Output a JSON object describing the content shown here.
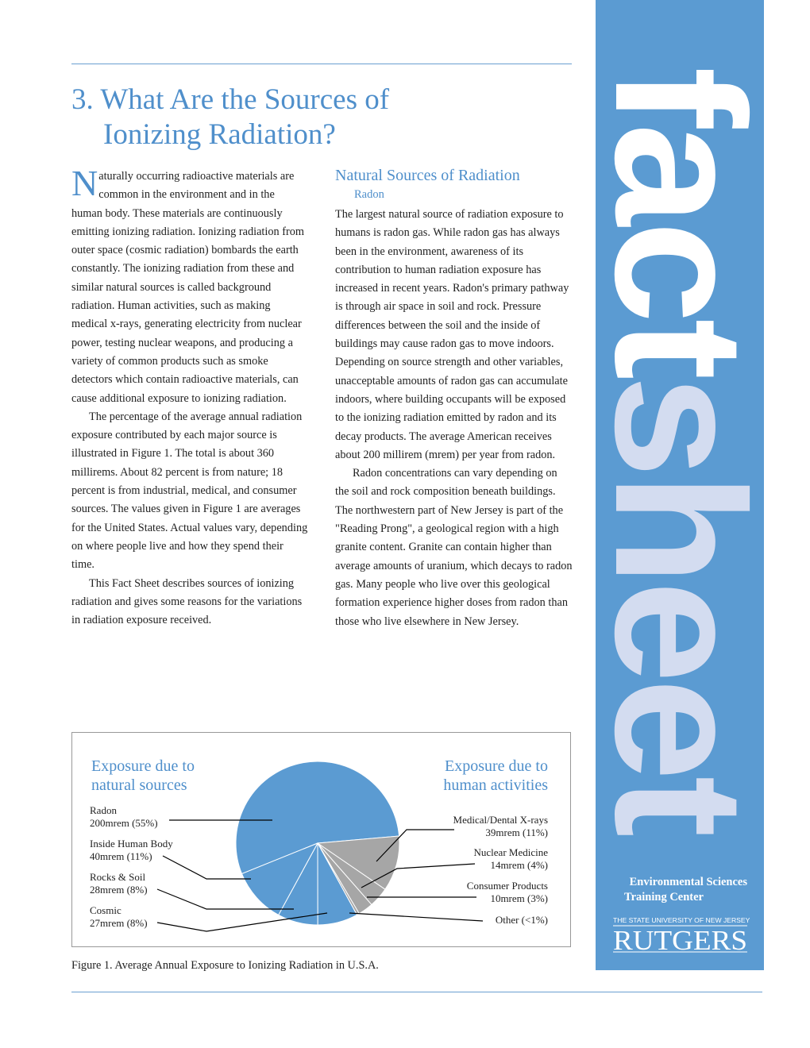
{
  "header": {
    "title": "3. What Are the Sources of Ionizing Radiation?"
  },
  "left_column": {
    "drop_cap": "N",
    "paragraphs": [
      "aturally occurring radioactive materials are common in the environment and in the human body. These materials are continuously emitting ionizing radiation. Ionizing radiation from outer space (cosmic radiation) bombards the earth constantly. The ionizing radiation from these and similar natural sources is called background radiation. Human activities, such as making medical x-rays, generating electricity from nuclear power, testing nuclear weapons, and producing a variety of common products such as smoke detectors which contain radioactive materials, can cause additional exposure to ionizing radiation.",
      "The percentage of the average annual radiation exposure contributed by each major source is illustrated in Figure 1. The total is about 360 millirems. About 82 percent is from nature; 18 percent is from industrial, medical, and consumer sources. The values given in Figure 1 are averages for the United States. Actual values vary, depending on where people live and how they spend their time.",
      "This Fact Sheet describes sources of ionizing radiation and gives some reasons for the variations in radiation exposure received."
    ]
  },
  "right_column": {
    "heading": "Natural Sources of Radiation",
    "subheading": "Radon",
    "paragraphs": [
      "The largest natural source of radiation exposure to humans is radon gas. While radon gas has always been in the environment, awareness of its contribution to human radiation exposure has increased in recent years. Radon's primary pathway is through air space in soil and rock. Pressure differences between the soil and the inside of buildings may cause radon gas to move indoors. Depending on source strength and other variables, unacceptable amounts of radon gas can accumulate indoors, where building occupants will be exposed to the ionizing radiation emitted by radon and its decay products. The average American receives about 200 millirem (mrem) per year from radon.",
      "Radon concentrations can vary depending on the soil and rock composition beneath buildings. The northwestern part of New Jersey is part of the \"Reading Prong\", a geological region with a high granite content. Granite can contain higher than average amounts of uranium, which decays to radon gas. Many people who live over this geological formation experience higher doses from radon than those who live elsewhere in New Jersey."
    ]
  },
  "chart_data": {
    "type": "pie",
    "group_titles": [
      "Exposure due to natural sources",
      "Exposure due to human activities"
    ],
    "categories": [
      "Radon",
      "Inside Human Body",
      "Rocks & Soil",
      "Cosmic",
      "Medical/Dental X-rays",
      "Nuclear Medicine",
      "Consumer Products",
      "Other"
    ],
    "values": [
      55,
      11,
      8,
      8,
      11,
      4,
      3,
      0.5
    ],
    "value_labels": [
      "200mrem (55%)",
      "40mrem (11%)",
      "28mrem (8%)",
      "27mrem (8%)",
      "39mrem (11%)",
      "14mrem (4%)",
      "10mrem (3%)",
      "(<1%)"
    ],
    "colors": [
      "#5b9bd2",
      "#5b9bd2",
      "#5b9bd2",
      "#5b9bd2",
      "#a6a6a6",
      "#a6a6a6",
      "#a6a6a6",
      "#a6a6a6"
    ]
  },
  "caption": "Figure 1.  Average Annual Exposure to Ionizing Radiation in U.S.A.",
  "sidebar": {
    "word_1": "fact",
    "word_2": "sheet",
    "org_line_1": "Environmental Sciences",
    "org_line_2": "Training Center",
    "university": "THE STATE UNIVERSITY OF NEW JERSEY",
    "logo": "RUTGERS"
  }
}
